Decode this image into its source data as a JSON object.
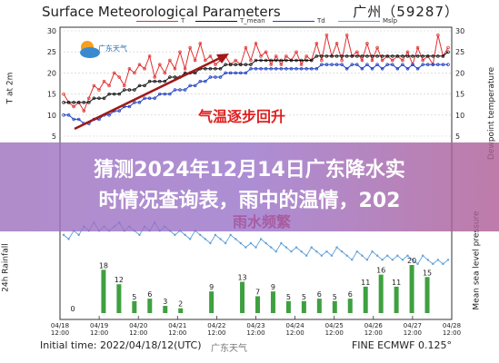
{
  "header": {
    "title": "Surface Meteorological Parameters",
    "station": "广州（59287）",
    "logo_text": "广东天气"
  },
  "legend": [
    {
      "name": "T",
      "color": "#e03030"
    },
    {
      "name": "T_mean",
      "color": "#111111"
    },
    {
      "name": "Td",
      "color": "#2040c0"
    },
    {
      "name": "Mslp",
      "color": "#5fa0d8"
    }
  ],
  "annotations": {
    "temp_note": "气温逐步回升",
    "rain_note": "雨水频繁"
  },
  "footer": {
    "initial_time": "Initial time: 2022/04/18/12(UTC)",
    "model": "FINE ECMWF 0.125°",
    "watermark": "广东天气"
  },
  "banner": {
    "line1": "猜测2024年12月14日广东降水实",
    "line2": "时情况查询表，雨中的温情，202"
  },
  "chart_data": [
    {
      "type": "line",
      "panel": "top",
      "ylabel_left": "T at 2m",
      "ylabel_right": "Dewpoint temperature",
      "ylim": [
        5,
        30
      ],
      "yticks_left": [
        5,
        10,
        15,
        20,
        25,
        30
      ],
      "yticks_right": [
        5,
        10,
        15,
        20,
        25,
        30
      ],
      "series": [
        {
          "name": "T",
          "color": "#e03030",
          "values": [
            15,
            13,
            12,
            13,
            11,
            14,
            17,
            16,
            18,
            17,
            20,
            19,
            17,
            21,
            20,
            22,
            21,
            24,
            19,
            22,
            20,
            23,
            21,
            25,
            21,
            26,
            23,
            27,
            23,
            24,
            22,
            23,
            24,
            22,
            23,
            22,
            26,
            23,
            27,
            24,
            25,
            22,
            24,
            22,
            24,
            23,
            25,
            22,
            24,
            23,
            27,
            23,
            29,
            24,
            27,
            23,
            29,
            24,
            25,
            23,
            27,
            23,
            26,
            23,
            24,
            23,
            24,
            23,
            25,
            22,
            26,
            23,
            24,
            22,
            29,
            24,
            26
          ]
        },
        {
          "name": "T_mean",
          "color": "#111111",
          "values": [
            13,
            13,
            13,
            13,
            13,
            13,
            14,
            14,
            14,
            15,
            15,
            15,
            16,
            16,
            16,
            17,
            17,
            18,
            18,
            18,
            18,
            19,
            19,
            19,
            20,
            20,
            20,
            21,
            21,
            21,
            21,
            21,
            22,
            22,
            22,
            22,
            22,
            22,
            23,
            23,
            23,
            23,
            23,
            23,
            23,
            23,
            23,
            23,
            23,
            23,
            24,
            24,
            24,
            24,
            24,
            24,
            24,
            24,
            24,
            24,
            24,
            24,
            24,
            24,
            24,
            24,
            24,
            24,
            24,
            24,
            24,
            24,
            24,
            24,
            24,
            24,
            25
          ]
        },
        {
          "name": "Td",
          "color": "#2040c0",
          "values": [
            10,
            10,
            9,
            9,
            8,
            8,
            9,
            9,
            10,
            10,
            11,
            11,
            12,
            12,
            13,
            13,
            14,
            14,
            14,
            15,
            15,
            15,
            16,
            16,
            16,
            17,
            17,
            18,
            18,
            19,
            19,
            19,
            20,
            20,
            20,
            20,
            20,
            21,
            21,
            21,
            21,
            21,
            21,
            21,
            21,
            21,
            21,
            21,
            21,
            21,
            21,
            22,
            22,
            22,
            22,
            22,
            21,
            22,
            22,
            21,
            22,
            21,
            22,
            21,
            22,
            22,
            21,
            22,
            21,
            22,
            21,
            22,
            22,
            22,
            22,
            22,
            22
          ]
        }
      ]
    },
    {
      "type": "line",
      "panel": "middle",
      "series": [
        {
          "name": "Mslp",
          "color": "#5fa0d8",
          "values": [
            1015,
            1014,
            1016,
            1015,
            1017,
            1016,
            1018,
            1016,
            1017,
            1016,
            1017,
            1018,
            1016,
            1017,
            1016,
            1015,
            1017,
            1016,
            1018,
            1016,
            1017,
            1016,
            1015,
            1016,
            1015,
            1014,
            1016,
            1015,
            1014,
            1013,
            1015,
            1014,
            1013,
            1015,
            1014,
            1013,
            1012,
            1013,
            1012,
            1014,
            1013,
            1012,
            1011,
            1013,
            1012,
            1011,
            1012,
            1011,
            1010,
            1012,
            1011,
            1010,
            1011,
            1010,
            1012,
            1011,
            1010,
            1009,
            1011,
            1010,
            1009,
            1011,
            1010,
            1009,
            1010,
            1009,
            1010,
            1009,
            1010,
            1009,
            1008,
            1010,
            1009,
            1008,
            1009,
            1008,
            1009
          ]
        }
      ]
    },
    {
      "type": "bar",
      "panel": "bottom",
      "ylabel_left": "24h Rainfall",
      "ylabel_right": "Mean sea level pressure",
      "bar_color": "#3fa040",
      "ylim": [
        0,
        20
      ],
      "labeled_bars": [
        {
          "index": 0,
          "value": 0
        },
        {
          "index": 2,
          "value": 18
        },
        {
          "index": 3,
          "value": 12
        },
        {
          "index": 4,
          "value": 5
        },
        {
          "index": 5,
          "value": 6
        },
        {
          "index": 6,
          "value": 3
        },
        {
          "index": 7,
          "value": 2
        },
        {
          "index": 9,
          "value": 9
        },
        {
          "index": 11,
          "value": 13
        },
        {
          "index": 12,
          "value": 7
        },
        {
          "index": 13,
          "value": 9
        },
        {
          "index": 14,
          "value": 5
        },
        {
          "index": 15,
          "value": 5
        },
        {
          "index": 16,
          "value": 6
        },
        {
          "index": 17,
          "value": 5
        },
        {
          "index": 18,
          "value": 6
        },
        {
          "index": 19,
          "value": 11
        },
        {
          "index": 20,
          "value": 16
        },
        {
          "index": 21,
          "value": 11
        },
        {
          "index": 22,
          "value": 20
        },
        {
          "index": 23,
          "value": 15
        }
      ],
      "x_ticks": [
        "04/18\n12:00",
        "04/19\n12:00",
        "04/20\n12:00",
        "04/21\n12:00",
        "04/22\n12:00",
        "04/23\n12:00",
        "04/24\n12:00",
        "04/25\n12:00",
        "04/26\n12:00",
        "04/27\n12:00",
        "04/28\n12:00"
      ]
    }
  ]
}
